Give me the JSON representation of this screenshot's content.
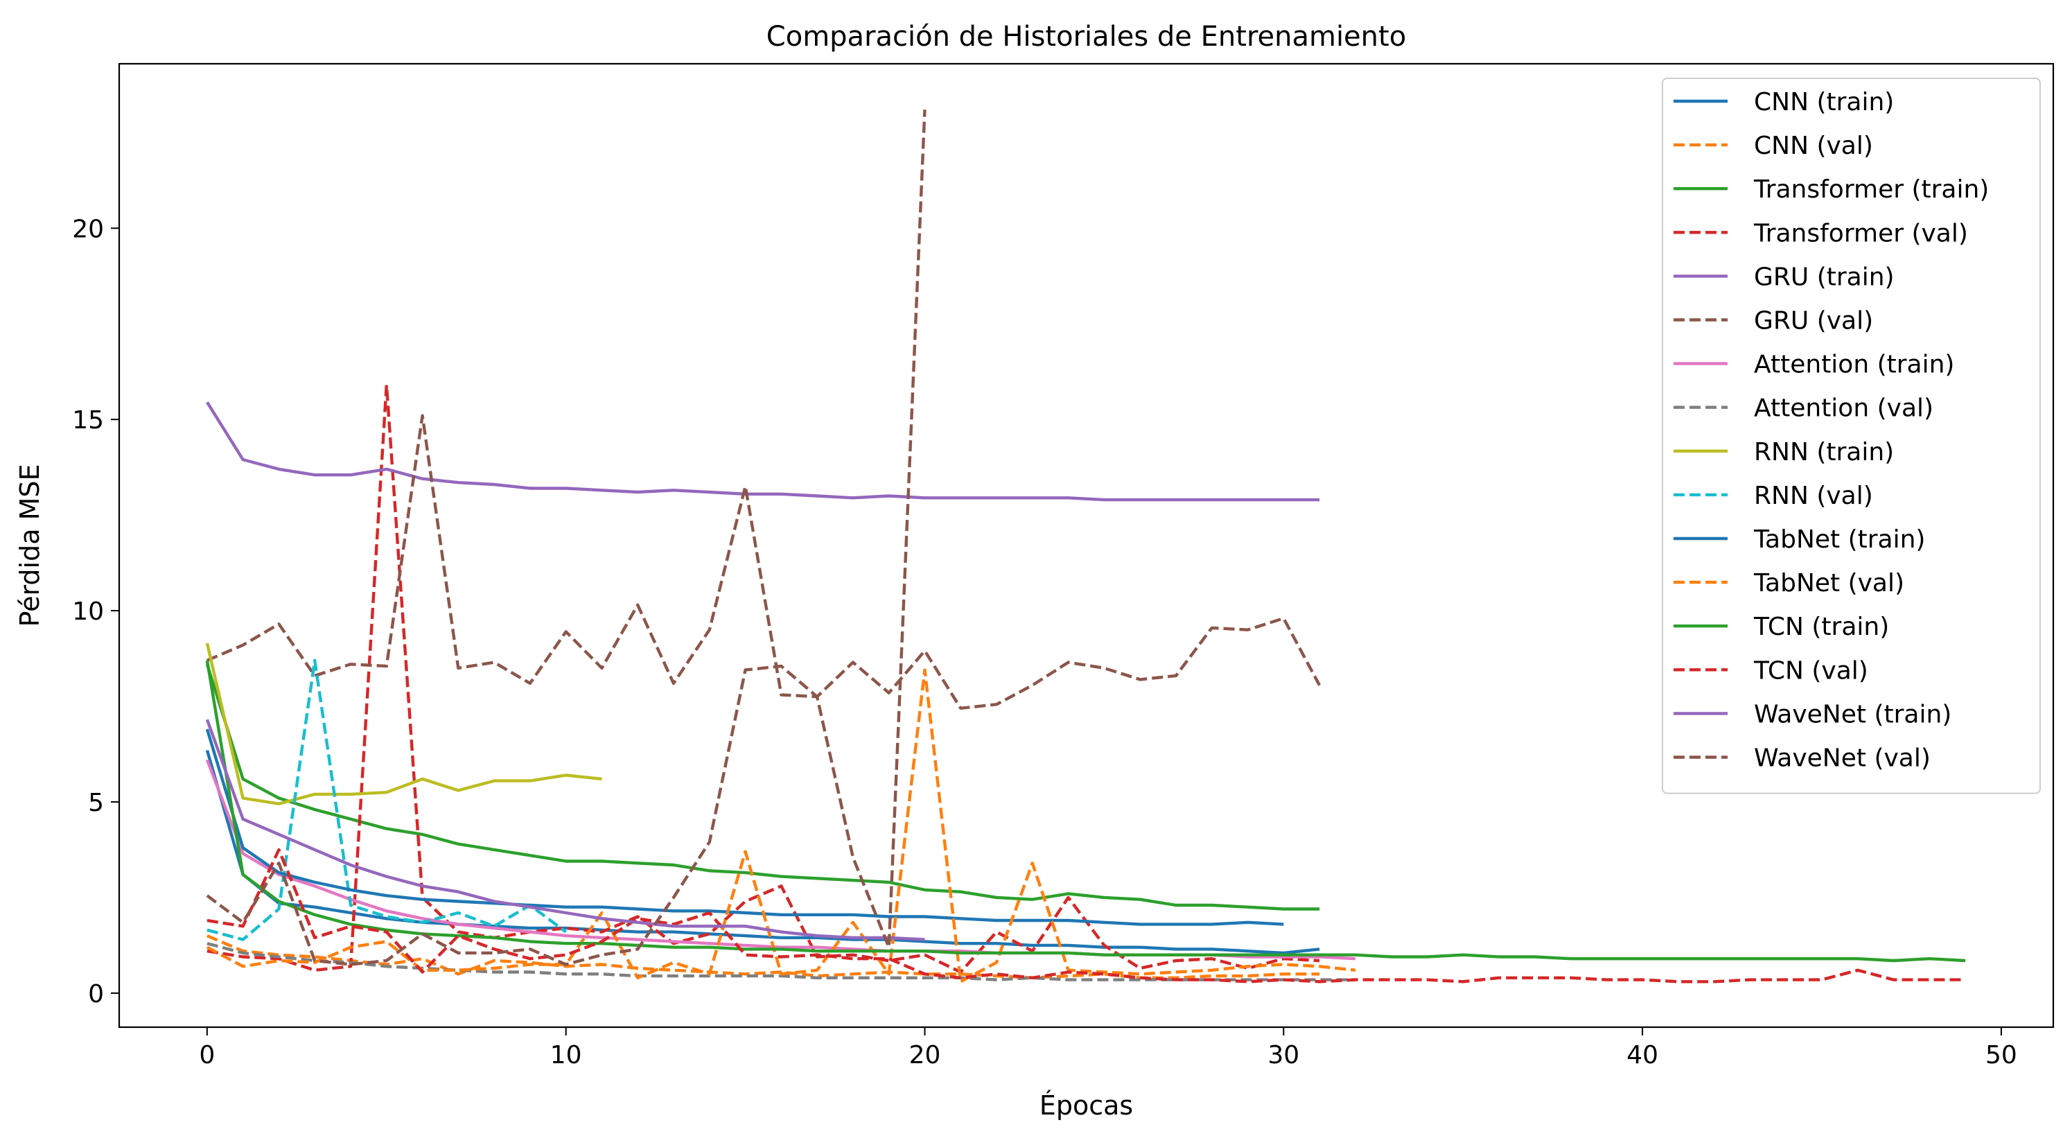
{
  "chart_data": {
    "type": "line",
    "title": "Comparación de Historiales de Entrenamiento",
    "xlabel": "Épocas",
    "ylabel": "Pérdida MSE",
    "xlim": [
      -2.45,
      51.45
    ],
    "ylim": [
      -0.89,
      24.3
    ],
    "xticks": [
      0,
      10,
      20,
      30,
      40,
      50
    ],
    "yticks": [
      0,
      5,
      10,
      15,
      20
    ],
    "grid": false,
    "legend_position": "upper right",
    "series": [
      {
        "name": "CNN (train)",
        "color": "#1f77b4",
        "dash": "solid",
        "values": [
          6.35,
          3.1,
          2.35,
          2.25,
          2.1,
          1.95,
          1.85,
          1.8,
          1.75,
          1.7,
          1.7,
          1.65,
          1.6,
          1.6,
          1.55,
          1.5,
          1.45,
          1.45,
          1.4,
          1.4,
          1.35,
          1.3,
          1.3,
          1.25,
          1.25,
          1.2,
          1.2,
          1.15,
          1.15,
          1.1,
          1.05,
          1.15
        ]
      },
      {
        "name": "CNN (val)",
        "color": "#ff7f0e",
        "dash": "dashed",
        "values": [
          1.5,
          1.1,
          1.0,
          0.95,
          0.85,
          0.75,
          0.9,
          0.5,
          0.85,
          0.8,
          0.7,
          0.75,
          0.65,
          0.6,
          0.55,
          0.5,
          0.55,
          0.45,
          0.5,
          0.55,
          0.5,
          0.5,
          0.45,
          0.4,
          0.45,
          0.5,
          0.4,
          0.4,
          0.45,
          0.45,
          0.5,
          0.5
        ]
      },
      {
        "name": "Transformer (train)",
        "color": "#2ca02c",
        "dash": "solid",
        "values": [
          8.6,
          5.6,
          5.1,
          4.8,
          4.55,
          4.3,
          4.15,
          3.9,
          3.75,
          3.6,
          3.45,
          3.45,
          3.4,
          3.35,
          3.2,
          3.15,
          3.05,
          3.0,
          2.95,
          2.9,
          2.7,
          2.65,
          2.5,
          2.45,
          2.6,
          2.5,
          2.45,
          2.3,
          2.3,
          2.25,
          2.2,
          2.2
        ]
      },
      {
        "name": "Transformer (val)",
        "color": "#d62728",
        "dash": "dashed",
        "values": [
          1.1,
          0.95,
          0.9,
          0.6,
          0.7,
          15.9,
          2.5,
          1.6,
          1.45,
          1.6,
          1.7,
          1.6,
          2.0,
          1.3,
          1.55,
          2.4,
          2.8,
          0.95,
          1.0,
          0.85,
          1.0,
          0.55,
          1.6,
          1.1,
          2.5,
          1.25,
          0.65,
          0.85,
          0.9,
          0.65,
          0.9,
          0.85
        ]
      },
      {
        "name": "GRU (train)",
        "color": "#9467bd",
        "dash": "solid",
        "values": [
          15.45,
          13.95,
          13.7,
          13.55,
          13.55,
          13.7,
          13.45,
          13.35,
          13.3,
          13.2,
          13.2,
          13.15,
          13.1,
          13.15,
          13.1,
          13.05,
          13.05,
          13.0,
          12.95,
          13.0,
          12.95,
          12.95,
          12.95,
          12.95,
          12.95,
          12.9,
          12.9,
          12.9,
          12.9,
          12.9,
          12.9,
          12.9
        ]
      },
      {
        "name": "GRU (val)",
        "color": "#8c564b",
        "dash": "dashed",
        "values": [
          8.7,
          9.1,
          9.65,
          8.3,
          8.6,
          8.55,
          15.1,
          8.5,
          8.65,
          8.1,
          9.45,
          8.5,
          10.15,
          8.1,
          9.5,
          13.25,
          7.8,
          7.75,
          8.65,
          7.85,
          8.95,
          7.45,
          7.55,
          8.05,
          8.65,
          8.5,
          8.2,
          8.3,
          9.55,
          9.5,
          9.8,
          8.05
        ]
      },
      {
        "name": "Attention (train)",
        "color": "#e377c2",
        "dash": "solid",
        "values": [
          6.1,
          3.65,
          3.1,
          2.8,
          2.45,
          2.15,
          1.95,
          1.8,
          1.7,
          1.6,
          1.5,
          1.45,
          1.4,
          1.35,
          1.3,
          1.25,
          1.2,
          1.2,
          1.15,
          1.1,
          1.1,
          1.1,
          1.05,
          1.05,
          1.05,
          1.0,
          1.0,
          1.0,
          1.0,
          0.95,
          0.95,
          0.95,
          0.9
        ]
      },
      {
        "name": "Attention (val)",
        "color": "#7f7f7f",
        "dash": "dashed",
        "values": [
          1.3,
          1.05,
          0.95,
          0.85,
          0.8,
          0.7,
          0.65,
          0.6,
          0.55,
          0.55,
          0.5,
          0.5,
          0.45,
          0.45,
          0.45,
          0.45,
          0.45,
          0.4,
          0.4,
          0.4,
          0.4,
          0.4,
          0.35,
          0.4,
          0.35,
          0.35,
          0.35,
          0.35,
          0.35,
          0.35,
          0.35,
          0.35,
          0.35
        ]
      },
      {
        "name": "RNN (train)",
        "color": "#bcbd22",
        "dash": "solid",
        "values": [
          9.15,
          5.1,
          4.95,
          5.2,
          5.2,
          5.25,
          5.6,
          5.3,
          5.55,
          5.55,
          5.7,
          5.6
        ]
      },
      {
        "name": "RNN (val)",
        "color": "#17becf",
        "dash": "dashed",
        "values": [
          1.65,
          1.4,
          2.2,
          8.7,
          2.3,
          2.0,
          1.85,
          2.1,
          1.75,
          2.3,
          1.6
        ]
      },
      {
        "name": "TabNet (train)",
        "color": "#1f77b4",
        "dash": "solid",
        "values": [
          6.9,
          3.8,
          3.15,
          2.9,
          2.7,
          2.55,
          2.45,
          2.4,
          2.35,
          2.3,
          2.25,
          2.25,
          2.2,
          2.15,
          2.15,
          2.1,
          2.05,
          2.05,
          2.05,
          2.0,
          2.0,
          1.95,
          1.9,
          1.9,
          1.9,
          1.85,
          1.8,
          1.8,
          1.8,
          1.85,
          1.8
        ]
      },
      {
        "name": "TabNet (val)",
        "color": "#ff7f0e",
        "dash": "dashed",
        "values": [
          1.2,
          0.7,
          0.85,
          0.8,
          1.2,
          1.35,
          0.6,
          0.6,
          0.65,
          0.75,
          0.75,
          2.1,
          0.4,
          0.8,
          0.5,
          3.7,
          0.5,
          0.6,
          1.85,
          0.5,
          8.45,
          0.3,
          0.8,
          3.4,
          0.6,
          0.55,
          0.5,
          0.55,
          0.6,
          0.7,
          0.75,
          0.7,
          0.6
        ]
      },
      {
        "name": "TCN (train)",
        "color": "#2ca02c",
        "dash": "solid",
        "values": [
          8.7,
          3.1,
          2.4,
          2.05,
          1.8,
          1.65,
          1.55,
          1.5,
          1.45,
          1.35,
          1.3,
          1.3,
          1.25,
          1.2,
          1.2,
          1.15,
          1.15,
          1.1,
          1.1,
          1.1,
          1.1,
          1.05,
          1.05,
          1.05,
          1.05,
          1.0,
          1.0,
          1.0,
          1.0,
          1.0,
          1.0,
          1.0,
          1.0,
          0.95,
          0.95,
          1.0,
          0.95,
          0.95,
          0.9,
          0.9,
          0.9,
          0.9,
          0.9,
          0.9,
          0.9,
          0.9,
          0.9,
          0.85,
          0.9,
          0.85
        ]
      },
      {
        "name": "TCN (val)",
        "color": "#d62728",
        "dash": "dashed",
        "values": [
          1.9,
          1.75,
          3.75,
          1.45,
          1.75,
          1.6,
          0.55,
          1.5,
          1.15,
          0.9,
          1.0,
          1.35,
          1.95,
          1.8,
          2.1,
          1.0,
          0.95,
          1.0,
          0.9,
          0.9,
          0.5,
          0.4,
          0.5,
          0.4,
          0.55,
          0.5,
          0.4,
          0.35,
          0.35,
          0.3,
          0.35,
          0.3,
          0.35,
          0.35,
          0.35,
          0.3,
          0.4,
          0.4,
          0.4,
          0.35,
          0.35,
          0.3,
          0.3,
          0.35,
          0.35,
          0.35,
          0.6,
          0.35,
          0.35,
          0.35
        ]
      },
      {
        "name": "WaveNet (train)",
        "color": "#9467bd",
        "dash": "solid",
        "values": [
          7.15,
          4.55,
          4.15,
          3.75,
          3.35,
          3.05,
          2.8,
          2.65,
          2.4,
          2.25,
          2.1,
          1.95,
          1.85,
          1.75,
          1.75,
          1.75,
          1.6,
          1.5,
          1.45,
          1.45,
          1.4
        ]
      },
      {
        "name": "WaveNet (val)",
        "color": "#8c564b",
        "dash": "dashed",
        "values": [
          2.55,
          1.85,
          3.4,
          0.85,
          0.75,
          0.85,
          1.55,
          1.05,
          1.05,
          1.15,
          0.75,
          1.0,
          1.15,
          2.5,
          3.95,
          8.45,
          8.55,
          7.75,
          3.55,
          1.2,
          23.1
        ]
      }
    ]
  }
}
